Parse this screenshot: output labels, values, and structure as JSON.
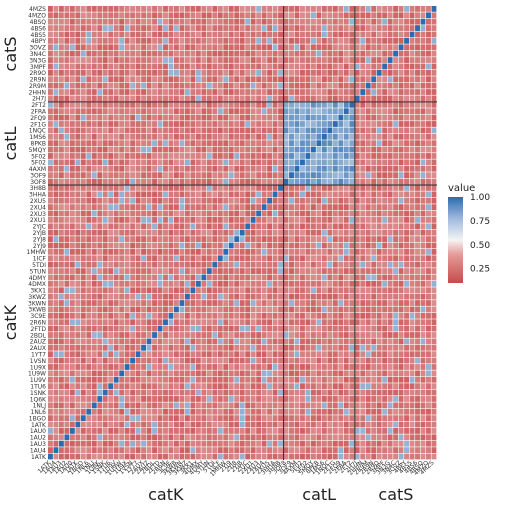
{
  "chart_data": {
    "type": "heatmap",
    "groups": [
      {
        "name": "catK",
        "count": 43
      },
      {
        "name": "catL",
        "count": 13
      },
      {
        "name": "catS",
        "count": 15
      }
    ],
    "row_labels_visible": [
      "4MZS",
      "4MZO",
      "4BSQ",
      "4BS6",
      "4BS5",
      "4BPY",
      "3OVZ",
      "3N4C",
      "3N3G",
      "3MPF",
      "2R9O",
      "2R9N",
      "2R9M",
      "2HHN",
      "2H7J",
      "2FT2",
      "2FRA",
      "2FQ9",
      "2F1G",
      "1NQC",
      "1MS6",
      "8PKB",
      "5MQY",
      "5F02",
      "5F02",
      "4AXM",
      "3OF9",
      "3OF8",
      "3H8B",
      "3HHA",
      "2XU5",
      "2XU4",
      "2XU3",
      "2XU1",
      "2YJC",
      "2YJB",
      "2YJ8",
      "2YJ9",
      "1MHW",
      "1ICF",
      "5TDI",
      "5TUN",
      "4DMY",
      "4DMX",
      "3KX1",
      "3KWZ",
      "3KWN",
      "3KWB",
      "3C9E",
      "2R6N",
      "2FTD",
      "2BDL",
      "2AUZ",
      "2AUX",
      "1YT7",
      "1VSN",
      "1U9X",
      "1U9W",
      "1U9V",
      "1TU6",
      "1SNK",
      "1Q6K",
      "1NLJ",
      "1NL6",
      "1BGO",
      "1ATK",
      "1AU0",
      "1AU2",
      "1AU3",
      "1AU4",
      "1ATK"
    ],
    "x_group_labels": [
      "catK",
      "catL",
      "catS"
    ],
    "y_group_labels": [
      "catK",
      "catL",
      "catS"
    ],
    "value_range": [
      0,
      1
    ],
    "legend": {
      "title": "value",
      "ticks": [
        "0.25",
        "0.50",
        "0.75",
        "1.00"
      ],
      "tick_values": [
        0.25,
        0.5,
        0.75,
        1.0
      ],
      "low_color": "#c84b4b",
      "mid_color": "#f4f4f4",
      "high_color": "#2c6bb0"
    },
    "description_values": {
      "diagonal": 1.0,
      "background_typical": 0.15,
      "catL_block": 0.85
    }
  }
}
